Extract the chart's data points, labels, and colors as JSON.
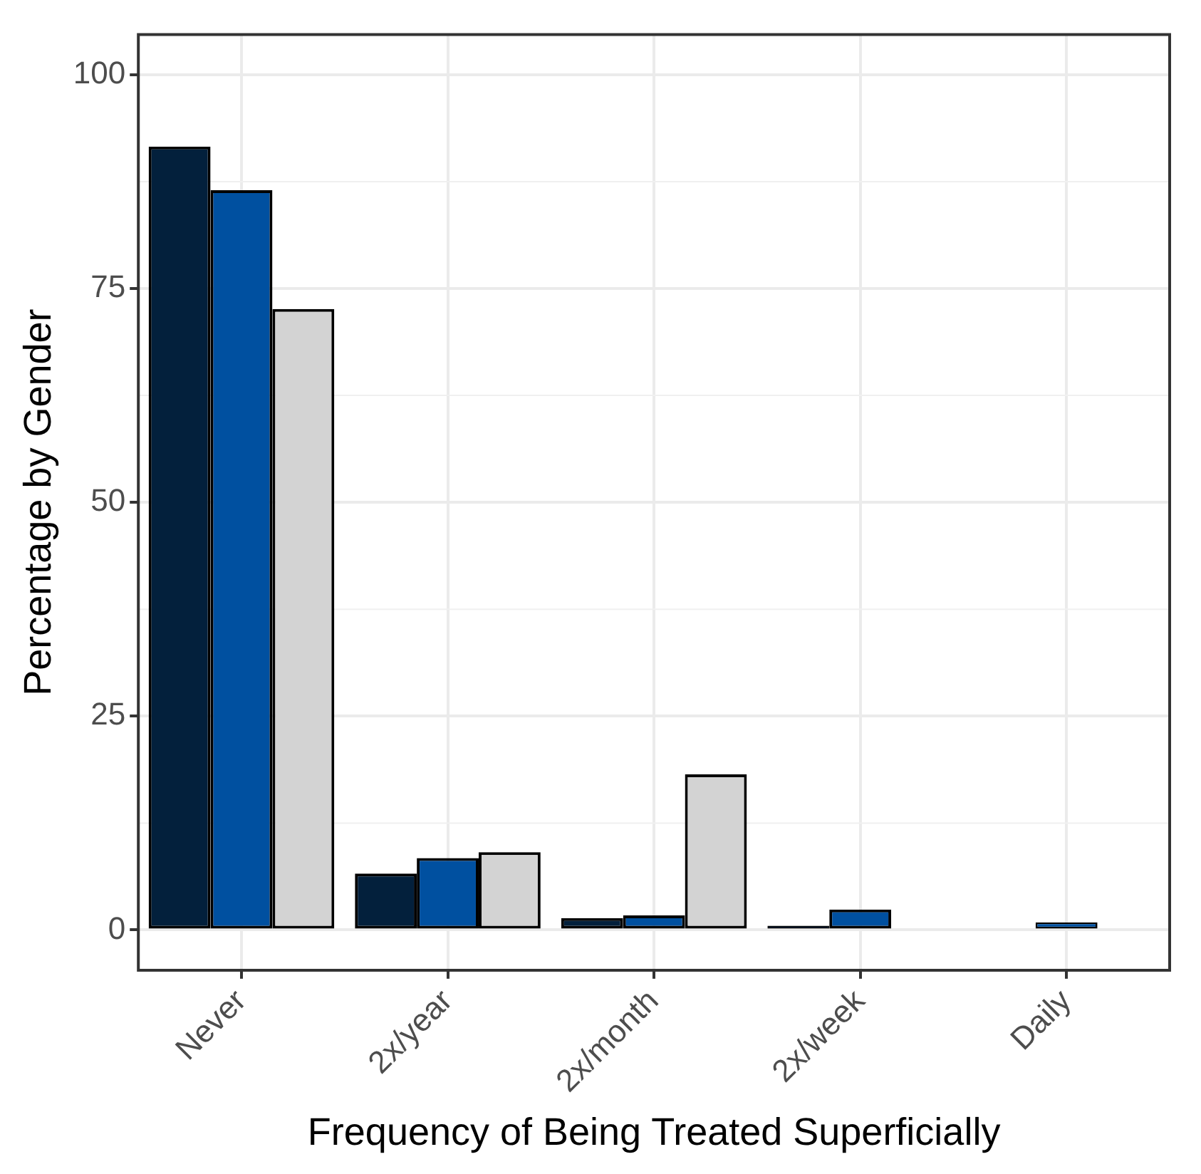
{
  "chart_data": {
    "type": "bar",
    "xlabel": "Frequency of Being Treated Superficially",
    "ylabel": "Percentage by Gender",
    "categories": [
      "Never",
      "2x/year",
      "2x/month",
      "2x/week",
      "Daily"
    ],
    "series": [
      {
        "color": "#03203c",
        "values": [
          91.6,
          6.6,
          1.4,
          0.5,
          null
        ]
      },
      {
        "color": "#0050a0",
        "values": [
          86.5,
          8.4,
          1.7,
          2.4,
          0.9
        ]
      },
      {
        "color": "#d3d3d3",
        "values": [
          72.6,
          9.1,
          18.2,
          null,
          null
        ]
      }
    ],
    "ylim": [
      -4.7,
      104.7
    ],
    "yticks": [
      0,
      25,
      50,
      75,
      100
    ],
    "grid": true,
    "legend": false
  }
}
